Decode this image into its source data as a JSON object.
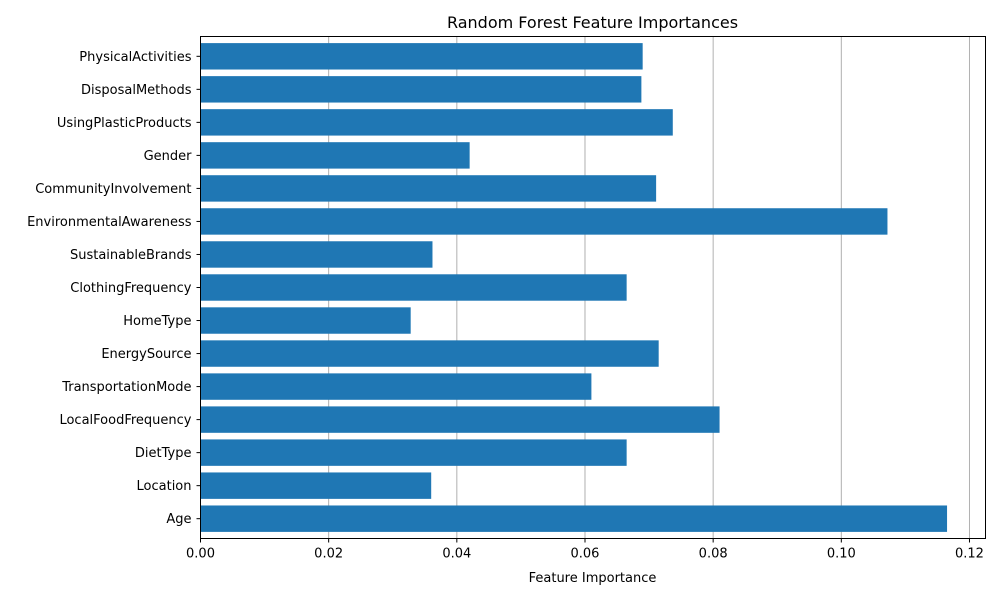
{
  "chart_data": {
    "type": "bar",
    "orientation": "horizontal",
    "title": "Random Forest Feature Importances",
    "xlabel": "Feature Importance",
    "ylabel": "",
    "xlim": [
      0,
      0.1225
    ],
    "xticks": [
      "0.00",
      "0.02",
      "0.04",
      "0.06",
      "0.08",
      "0.10",
      "0.12"
    ],
    "xtick_values": [
      0,
      0.02,
      0.04,
      0.06,
      0.08,
      0.1,
      0.12
    ],
    "grid": "x-axis vertical lines",
    "bar_color": "#1f77b4",
    "grid_color": "#b0b0b0",
    "categories": [
      "Age",
      "Location",
      "DietType",
      "LocalFoodFrequency",
      "TransportationMode",
      "EnergySource",
      "HomeType",
      "ClothingFrequency",
      "SustainableBrands",
      "EnvironmentalAwareness",
      "CommunityInvolvement",
      "Gender",
      "UsingPlasticProducts",
      "DisposalMethods",
      "PhysicalActivities"
    ],
    "values": [
      0.1165,
      0.036,
      0.0665,
      0.081,
      0.061,
      0.0715,
      0.0328,
      0.0665,
      0.0362,
      0.1072,
      0.0711,
      0.042,
      0.0737,
      0.0688,
      0.069
    ]
  }
}
